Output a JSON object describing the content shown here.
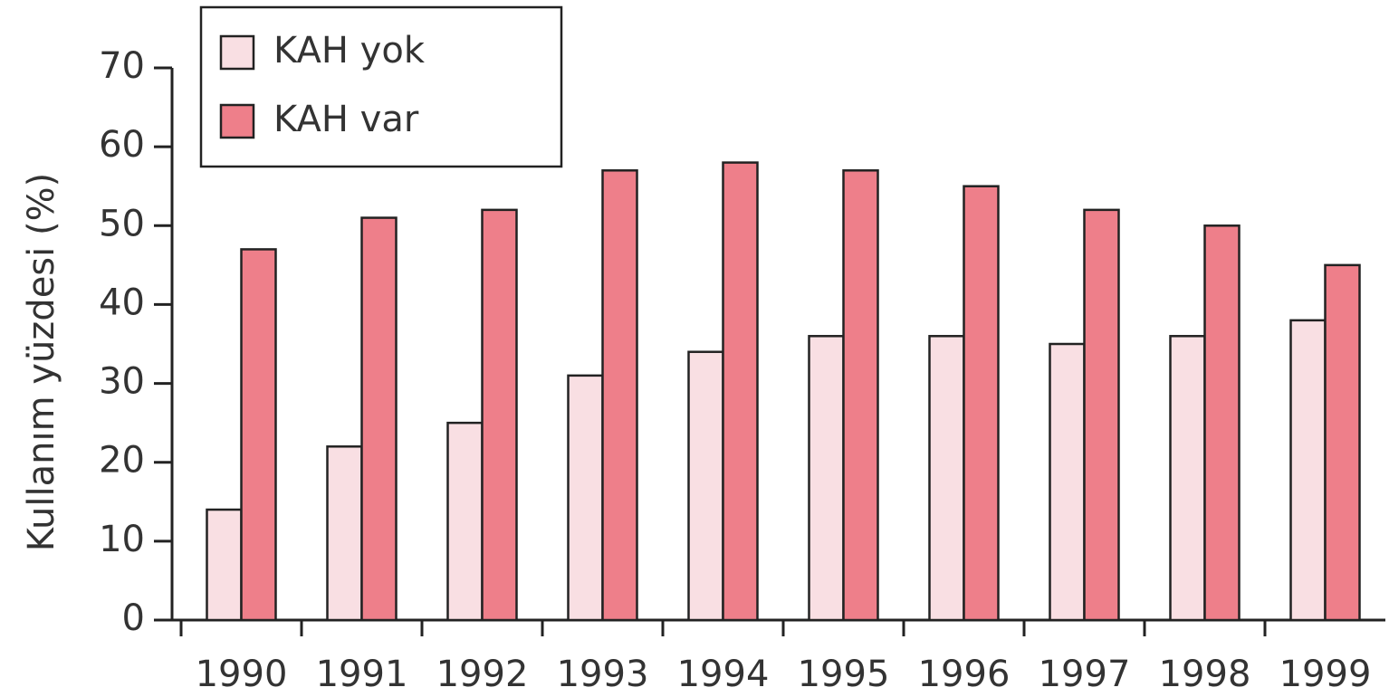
{
  "chart_data": {
    "type": "bar",
    "y_label": "Kullanım yüzdesi (%)",
    "categories": [
      "1990",
      "1991",
      "1992",
      "1993",
      "1994",
      "1995",
      "1996",
      "1997",
      "1998",
      "1999"
    ],
    "series": [
      {
        "name": "KAH yok",
        "color": "#f9dfe3",
        "values": [
          14,
          22,
          25,
          31,
          34,
          36,
          36,
          35,
          36,
          38
        ]
      },
      {
        "name": "KAH var",
        "color": "#ee7f8a",
        "values": [
          47,
          51,
          52,
          57,
          58,
          57,
          55,
          52,
          50,
          45
        ]
      }
    ],
    "ylim": [
      0,
      70
    ],
    "yticks": [
      0,
      10,
      20,
      30,
      40,
      50,
      60,
      70
    ],
    "legend": "top-left"
  }
}
